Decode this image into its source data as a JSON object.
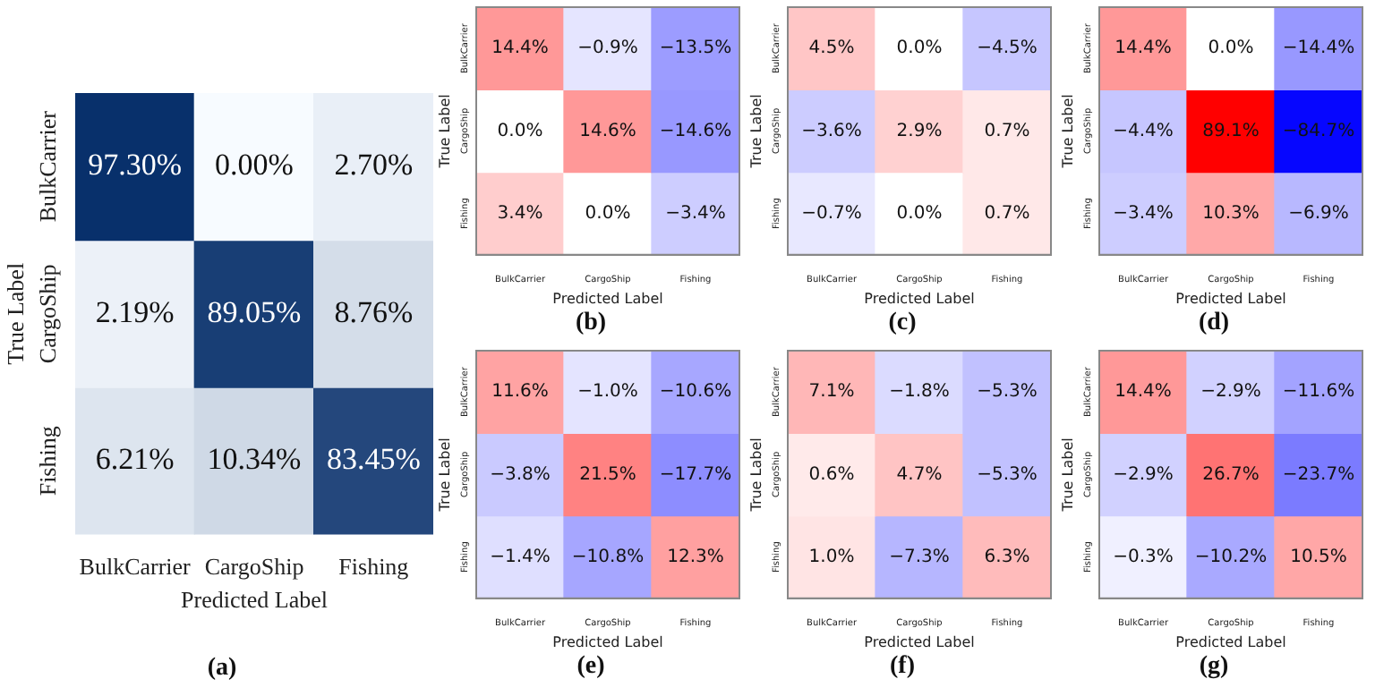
{
  "chart_data": [
    {
      "type": "heatmap",
      "categories": [
        "BulkCarrier",
        "CargoShip",
        "Fishing"
      ],
      "y_categories": [
        "BulkCarrier",
        "CargoShip",
        "Fishing"
      ],
      "xlabel": "Predicted Label",
      "ylabel": "True Label",
      "annotations": [
        "(a)"
      ],
      "cells": [
        [
          97.3,
          0,
          2.7
        ],
        [
          2.19,
          89.05,
          8.76
        ],
        [
          6.21,
          10.34,
          83.45
        ]
      ],
      "cell_labels": [
        [
          "97.30%",
          "0.00%",
          "2.70%"
        ],
        [
          "2.19%",
          "89.05%",
          "8.76%"
        ],
        [
          "6.21%",
          "10.34%",
          "83.45%"
        ]
      ]
    },
    {
      "type": "heatmap",
      "categories": [
        "BulkCarrier",
        "CargoShip",
        "Fishing"
      ],
      "y_categories": [
        "BulkCarrier",
        "CargoShip",
        "Fishing"
      ],
      "xlabel": "Predicted Label",
      "ylabel": "True Label",
      "annotations": [
        "(b)"
      ],
      "cells": [
        [
          14.4,
          -0.9,
          -13.5
        ],
        [
          0,
          14.6,
          -14.6
        ],
        [
          3.4,
          0,
          -3.4
        ]
      ],
      "cell_labels": [
        [
          "14.4%",
          "−0.9%",
          "−13.5%"
        ],
        [
          "0.0%",
          "14.6%",
          "−14.6%"
        ],
        [
          "3.4%",
          "0.0%",
          "−3.4%"
        ]
      ]
    },
    {
      "type": "heatmap",
      "categories": [
        "BulkCarrier",
        "CargoShip",
        "Fishing"
      ],
      "y_categories": [
        "BulkCarrier",
        "CargoShip",
        "Fishing"
      ],
      "xlabel": "Predicted Label",
      "ylabel": "True Label",
      "annotations": [
        "(c)"
      ],
      "cells": [
        [
          4.5,
          0,
          -4.5
        ],
        [
          -3.6,
          2.9,
          0.7
        ],
        [
          -0.7,
          0,
          0.7
        ]
      ],
      "cell_labels": [
        [
          "4.5%",
          "0.0%",
          "−4.5%"
        ],
        [
          "−3.6%",
          "2.9%",
          "0.7%"
        ],
        [
          "−0.7%",
          "0.0%",
          "0.7%"
        ]
      ]
    },
    {
      "type": "heatmap",
      "categories": [
        "BulkCarrier",
        "CargoShip",
        "Fishing"
      ],
      "y_categories": [
        "BulkCarrier",
        "CargoShip",
        "Fishing"
      ],
      "xlabel": "Predicted Label",
      "ylabel": "True Label",
      "annotations": [
        "(d)"
      ],
      "cells": [
        [
          14.4,
          0,
          -14.4
        ],
        [
          -4.4,
          89.1,
          -84.7
        ],
        [
          -3.4,
          10.3,
          -6.9
        ]
      ],
      "cell_labels": [
        [
          "14.4%",
          "0.0%",
          "−14.4%"
        ],
        [
          "−4.4%",
          "89.1%",
          "−84.7%"
        ],
        [
          "−3.4%",
          "10.3%",
          "−6.9%"
        ]
      ]
    },
    {
      "type": "heatmap",
      "categories": [
        "BulkCarrier",
        "CargoShip",
        "Fishing"
      ],
      "y_categories": [
        "BulkCarrier",
        "CargoShip",
        "Fishing"
      ],
      "xlabel": "Predicted Label",
      "ylabel": "True Label",
      "annotations": [
        "(e)"
      ],
      "cells": [
        [
          11.6,
          -1,
          -10.6
        ],
        [
          -3.8,
          21.5,
          -17.7
        ],
        [
          -1.4,
          -10.8,
          12.3
        ]
      ],
      "cell_labels": [
        [
          "11.6%",
          "−1.0%",
          "−10.6%"
        ],
        [
          "−3.8%",
          "21.5%",
          "−17.7%"
        ],
        [
          "−1.4%",
          "−10.8%",
          "12.3%"
        ]
      ]
    },
    {
      "type": "heatmap",
      "categories": [
        "BulkCarrier",
        "CargoShip",
        "Fishing"
      ],
      "y_categories": [
        "BulkCarrier",
        "CargoShip",
        "Fishing"
      ],
      "xlabel": "Predicted Label",
      "ylabel": "True Label",
      "annotations": [
        "(f)"
      ],
      "cells": [
        [
          7.1,
          -1.8,
          -5.3
        ],
        [
          0.6,
          4.7,
          -5.3
        ],
        [
          1,
          -7.3,
          6.3
        ]
      ],
      "cell_labels": [
        [
          "7.1%",
          "−1.8%",
          "−5.3%"
        ],
        [
          "0.6%",
          "4.7%",
          "−5.3%"
        ],
        [
          "1.0%",
          "−7.3%",
          "6.3%"
        ]
      ]
    },
    {
      "type": "heatmap",
      "categories": [
        "BulkCarrier",
        "CargoShip",
        "Fishing"
      ],
      "y_categories": [
        "BulkCarrier",
        "CargoShip",
        "Fishing"
      ],
      "xlabel": "Predicted Label",
      "ylabel": "True Label",
      "annotations": [
        "(g)"
      ],
      "cells": [
        [
          14.4,
          -2.9,
          -11.6
        ],
        [
          -2.9,
          26.7,
          -23.7
        ],
        [
          -0.3,
          -10.2,
          10.5
        ]
      ],
      "cell_labels": [
        [
          "14.4%",
          "−2.9%",
          "−11.6%"
        ],
        [
          "−2.9%",
          "26.7%",
          "−23.7%"
        ],
        [
          "−0.3%",
          "−10.2%",
          "10.5%"
        ]
      ]
    }
  ]
}
